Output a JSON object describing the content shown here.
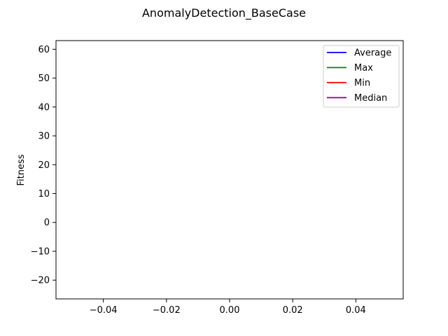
{
  "chart_data": {
    "type": "line",
    "title": "AnomalyDetection_BaseCase",
    "xlabel": "",
    "ylabel": "Fitness",
    "xlim": [
      -0.055,
      0.055
    ],
    "ylim": [
      -26.5,
      63
    ],
    "xticks": [
      -0.04,
      -0.02,
      0.0,
      0.02,
      0.04
    ],
    "xtick_labels": [
      "−0.04",
      "−0.02",
      "0.00",
      "0.02",
      "0.04"
    ],
    "yticks": [
      -20,
      -10,
      0,
      10,
      20,
      30,
      40,
      50,
      60
    ],
    "ytick_labels": [
      "−20",
      "−10",
      "0",
      "10",
      "20",
      "30",
      "40",
      "50",
      "60"
    ],
    "grid": false,
    "legend_placement": "top-right",
    "series": [
      {
        "name": "Average",
        "color": "#0000ff",
        "x": [],
        "y": []
      },
      {
        "name": "Max",
        "color": "#008000",
        "x": [],
        "y": []
      },
      {
        "name": "Min",
        "color": "#ff0000",
        "x": [],
        "y": []
      },
      {
        "name": "Median",
        "color": "#800080",
        "x": [],
        "y": []
      }
    ]
  }
}
